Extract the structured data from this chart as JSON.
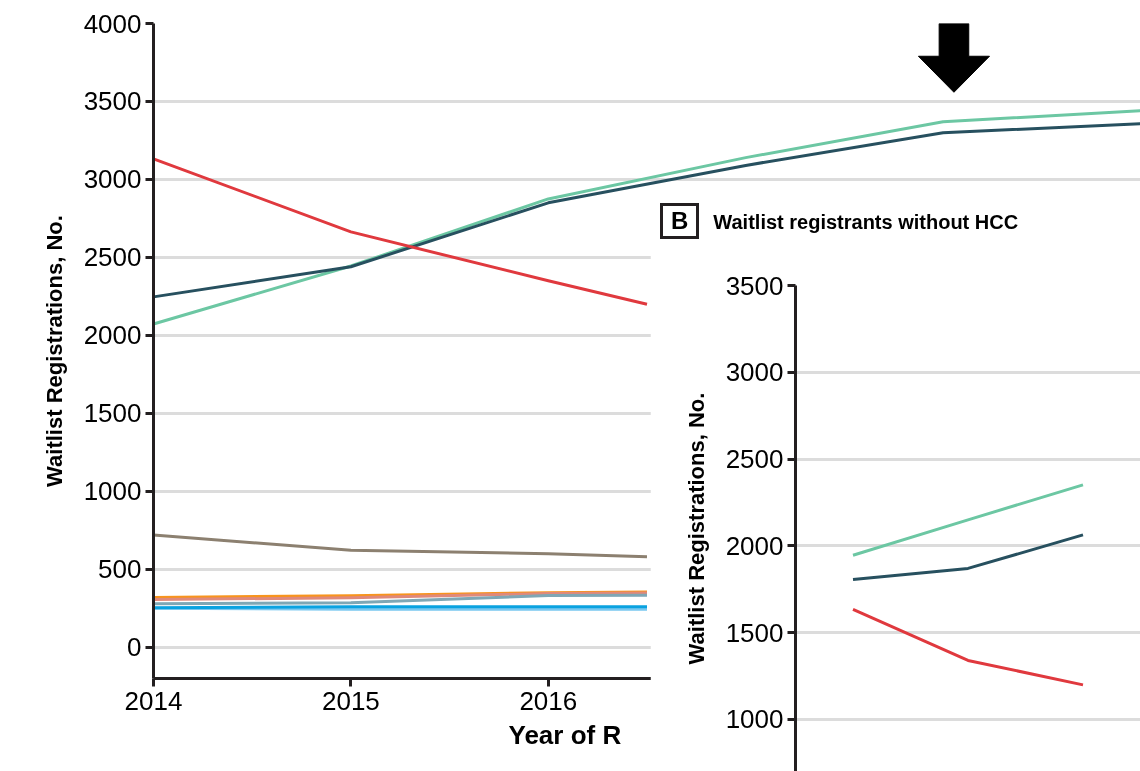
{
  "chart_data": [
    {
      "type": "line",
      "xlabel": "Year of R",
      "ylabel": "Waitlist Registrations, No.",
      "xlim": [
        2014,
        2019
      ],
      "ylim": [
        -200,
        4000
      ],
      "xticks": [
        2014,
        2015,
        2016
      ],
      "yticks": [
        0,
        500,
        1000,
        1500,
        2000,
        2500,
        3000,
        3500,
        4000
      ],
      "grid": "y",
      "series": [
        {
          "color": "#6cc7a3",
          "x": [
            2014,
            2015,
            2016,
            2017,
            2018,
            2019
          ],
          "values": [
            2073,
            2445,
            2875,
            3140,
            3370,
            3440
          ]
        },
        {
          "color": "#27505f",
          "x": [
            2014,
            2015,
            2016,
            2017,
            2018,
            2019
          ],
          "values": [
            2247,
            2440,
            2850,
            3090,
            3300,
            3357
          ]
        },
        {
          "color": "#e0393e",
          "x": [
            2014,
            2015,
            2016,
            2016.5
          ],
          "values": [
            3132,
            2664,
            2350,
            2200
          ]
        },
        {
          "color": "#8c8070",
          "x": [
            2014,
            2015,
            2016,
            2016.5
          ],
          "values": [
            720,
            622,
            600,
            580
          ]
        },
        {
          "color": "#f7941d",
          "x": [
            2014,
            2015,
            2016,
            2016.5
          ],
          "values": [
            320,
            330,
            350,
            355
          ]
        },
        {
          "color": "#e0897a",
          "x": [
            2014,
            2015,
            2016,
            2016.5
          ],
          "values": [
            307,
            317,
            345,
            349
          ]
        },
        {
          "color": "#7fa7b5",
          "x": [
            2014,
            2015,
            2016,
            2016.5
          ],
          "values": [
            280,
            286,
            332,
            334
          ]
        },
        {
          "color": "#7ac8f0",
          "x": [
            2014,
            2015,
            2016,
            2016.5
          ],
          "values": [
            250,
            244,
            244,
            244
          ]
        },
        {
          "color": "#0aa2e0",
          "x": [
            2014,
            2015,
            2016,
            2016.5
          ],
          "values": [
            254,
            260,
            260,
            260
          ]
        }
      ]
    },
    {
      "type": "line",
      "title": "Waitlist registrants without HCC",
      "annotations": [
        "B"
      ],
      "ylabel": "Waitlist Registrations, No.",
      "categories": [
        null,
        null,
        null
      ],
      "ylim": [
        700,
        3500
      ],
      "yticks": [
        1000,
        1500,
        2000,
        2500,
        3000,
        3500
      ],
      "grid": "y",
      "tick_labels": "y",
      "series": [
        {
          "color": "#6cc7a3",
          "values": [
            1946,
            2150,
            2351
          ]
        },
        {
          "color": "#27505f",
          "values": [
            1806,
            1870,
            2063
          ]
        },
        {
          "color": "#e0393e",
          "values": [
            1634,
            1340,
            1199
          ]
        }
      ]
    }
  ]
}
